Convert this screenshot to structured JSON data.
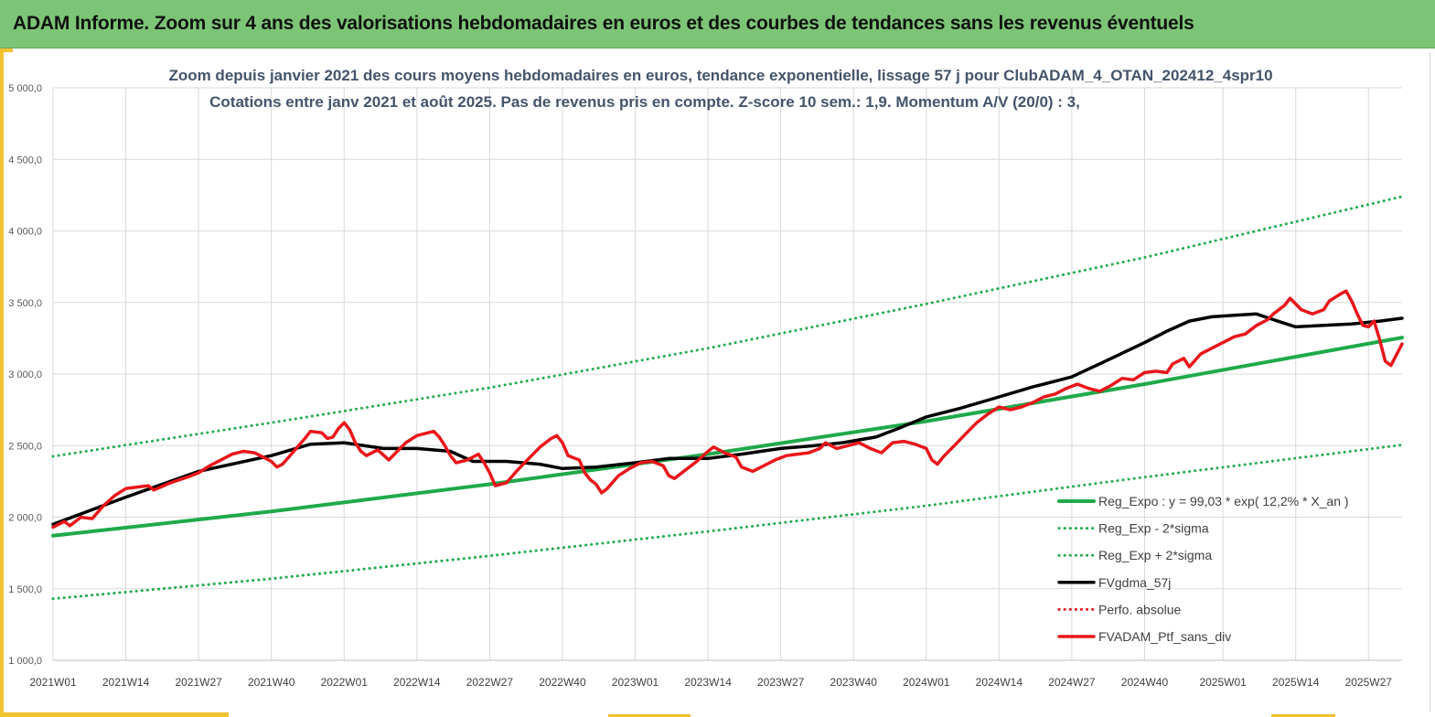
{
  "header": {
    "title": "ADAM Informe. Zoom sur 4 ans des valorisations hebdomadaires en euros et des courbes de tendances sans les revenus éventuels"
  },
  "colors": {
    "banner": "#7cc576",
    "accent": "#f2c12e",
    "green": "#1faa4b",
    "black": "#000000",
    "red": "#e8161b",
    "grid": "#d9d9d9"
  },
  "chart_data": {
    "type": "line",
    "title": "Zoom depuis janvier 2021 des cours moyens hebdomadaires  en euros, tendance exponentielle, lissage 57 j pour ClubADAM_4_OTAN_202412_4spr10",
    "subtitle": "Cotations  entre janv 2021 et août 2025. Pas de revenus pris en compte. Z-score 10 sem.: 1,9. Momentum  A/V (20/0) : 3,",
    "xlabel": "",
    "ylabel": "",
    "ylim": [
      1000,
      5000
    ],
    "yticks": [
      1000,
      1500,
      2000,
      2500,
      3000,
      3500,
      4000,
      4500,
      5000
    ],
    "ytick_labels": [
      "1 000,0",
      "1 500,0",
      "2 000,0",
      "2 500,0",
      "3 000,0",
      "3 500,0",
      "4 000,0",
      "4 500,0",
      "5 000,0"
    ],
    "x_range_weeks": [
      1,
      242
    ],
    "xticks": [
      {
        "label": "2021W01",
        "week": 1
      },
      {
        "label": "2021W14",
        "week": 14
      },
      {
        "label": "2021W27",
        "week": 27
      },
      {
        "label": "2021W40",
        "week": 40
      },
      {
        "label": "2022W01",
        "week": 53
      },
      {
        "label": "2022W14",
        "week": 66
      },
      {
        "label": "2022W27",
        "week": 79
      },
      {
        "label": "2022W40",
        "week": 92
      },
      {
        "label": "2023W01",
        "week": 105
      },
      {
        "label": "2023W14",
        "week": 118
      },
      {
        "label": "2023W27",
        "week": 131
      },
      {
        "label": "2023W40",
        "week": 144
      },
      {
        "label": "2024W01",
        "week": 157
      },
      {
        "label": "2024W14",
        "week": 170
      },
      {
        "label": "2024W27",
        "week": 183
      },
      {
        "label": "2024W40",
        "week": 196
      },
      {
        "label": "2025W01",
        "week": 210
      },
      {
        "label": "2025W14",
        "week": 223
      },
      {
        "label": "2025W27",
        "week": 236
      }
    ],
    "grid": true,
    "legend_position": "bottom-right",
    "series": [
      {
        "name": "Reg_Expo : y = 99,03 * exp( 12,2% *  X_an )",
        "style": "solid",
        "color": "#1faa4b",
        "points": [
          [
            1,
            1870
          ],
          [
            40,
            2040
          ],
          [
            79,
            2230
          ],
          [
            118,
            2440
          ],
          [
            157,
            2670
          ],
          [
            196,
            2930
          ],
          [
            242,
            3255
          ]
        ]
      },
      {
        "name": "Reg_Exp - 2*sigma",
        "style": "dotted",
        "color": "#1faa4b",
        "points": [
          [
            1,
            1430
          ],
          [
            40,
            1570
          ],
          [
            79,
            1730
          ],
          [
            118,
            1900
          ],
          [
            157,
            2080
          ],
          [
            196,
            2280
          ],
          [
            242,
            2505
          ]
        ]
      },
      {
        "name": "Reg_Exp + 2*sigma",
        "style": "dotted",
        "color": "#1faa4b",
        "points": [
          [
            1,
            2425
          ],
          [
            40,
            2660
          ],
          [
            79,
            2905
          ],
          [
            118,
            3180
          ],
          [
            157,
            3490
          ],
          [
            196,
            3815
          ],
          [
            242,
            4240
          ]
        ]
      },
      {
        "name": "FVgdma_57j",
        "style": "solid",
        "color": "#000000",
        "points": [
          [
            1,
            1950
          ],
          [
            14,
            2140
          ],
          [
            27,
            2320
          ],
          [
            40,
            2430
          ],
          [
            47,
            2510
          ],
          [
            53,
            2520
          ],
          [
            60,
            2480
          ],
          [
            66,
            2480
          ],
          [
            72,
            2460
          ],
          [
            76,
            2390
          ],
          [
            82,
            2390
          ],
          [
            88,
            2370
          ],
          [
            92,
            2340
          ],
          [
            98,
            2350
          ],
          [
            105,
            2380
          ],
          [
            111,
            2410
          ],
          [
            118,
            2410
          ],
          [
            124,
            2440
          ],
          [
            131,
            2480
          ],
          [
            137,
            2500
          ],
          [
            142,
            2520
          ],
          [
            148,
            2560
          ],
          [
            152,
            2620
          ],
          [
            157,
            2700
          ],
          [
            163,
            2760
          ],
          [
            170,
            2840
          ],
          [
            176,
            2910
          ],
          [
            183,
            2980
          ],
          [
            189,
            3090
          ],
          [
            196,
            3220
          ],
          [
            200,
            3300
          ],
          [
            204,
            3370
          ],
          [
            208,
            3400
          ],
          [
            212,
            3410
          ],
          [
            216,
            3420
          ],
          [
            219,
            3380
          ],
          [
            223,
            3330
          ],
          [
            228,
            3340
          ],
          [
            233,
            3350
          ],
          [
            238,
            3370
          ],
          [
            242,
            3390
          ]
        ]
      },
      {
        "name": "Perfo. absolue",
        "style": "dotted",
        "color": "#e8161b",
        "points": []
      },
      {
        "name": "FVADAM_Ptf_sans_div",
        "style": "solid",
        "color": "#e8161b",
        "points": [
          [
            1,
            1930
          ],
          [
            3,
            1970
          ],
          [
            4,
            1940
          ],
          [
            6,
            2000
          ],
          [
            8,
            1990
          ],
          [
            10,
            2080
          ],
          [
            12,
            2150
          ],
          [
            14,
            2200
          ],
          [
            16,
            2210
          ],
          [
            18,
            2220
          ],
          [
            19,
            2190
          ],
          [
            22,
            2240
          ],
          [
            25,
            2280
          ],
          [
            27,
            2310
          ],
          [
            29,
            2360
          ],
          [
            31,
            2400
          ],
          [
            33,
            2440
          ],
          [
            35,
            2460
          ],
          [
            37,
            2450
          ],
          [
            38,
            2430
          ],
          [
            40,
            2390
          ],
          [
            41,
            2350
          ],
          [
            42,
            2370
          ],
          [
            44,
            2460
          ],
          [
            46,
            2550
          ],
          [
            47,
            2600
          ],
          [
            49,
            2590
          ],
          [
            50,
            2550
          ],
          [
            51,
            2560
          ],
          [
            52,
            2620
          ],
          [
            53,
            2660
          ],
          [
            54,
            2610
          ],
          [
            55,
            2520
          ],
          [
            56,
            2460
          ],
          [
            57,
            2430
          ],
          [
            59,
            2470
          ],
          [
            61,
            2400
          ],
          [
            62,
            2440
          ],
          [
            64,
            2520
          ],
          [
            66,
            2570
          ],
          [
            68,
            2590
          ],
          [
            69,
            2600
          ],
          [
            70,
            2560
          ],
          [
            71,
            2500
          ],
          [
            72,
            2430
          ],
          [
            73,
            2380
          ],
          [
            75,
            2400
          ],
          [
            76,
            2420
          ],
          [
            77,
            2440
          ],
          [
            78,
            2380
          ],
          [
            79,
            2310
          ],
          [
            80,
            2220
          ],
          [
            82,
            2240
          ],
          [
            84,
            2330
          ],
          [
            86,
            2410
          ],
          [
            88,
            2490
          ],
          [
            90,
            2550
          ],
          [
            91,
            2570
          ],
          [
            92,
            2520
          ],
          [
            93,
            2430
          ],
          [
            95,
            2400
          ],
          [
            96,
            2310
          ],
          [
            97,
            2260
          ],
          [
            98,
            2230
          ],
          [
            99,
            2170
          ],
          [
            100,
            2200
          ],
          [
            102,
            2290
          ],
          [
            104,
            2340
          ],
          [
            106,
            2380
          ],
          [
            108,
            2390
          ],
          [
            110,
            2360
          ],
          [
            111,
            2290
          ],
          [
            112,
            2270
          ],
          [
            114,
            2330
          ],
          [
            116,
            2390
          ],
          [
            118,
            2460
          ],
          [
            119,
            2490
          ],
          [
            121,
            2450
          ],
          [
            123,
            2420
          ],
          [
            124,
            2350
          ],
          [
            126,
            2320
          ],
          [
            128,
            2360
          ],
          [
            130,
            2400
          ],
          [
            132,
            2430
          ],
          [
            134,
            2440
          ],
          [
            136,
            2450
          ],
          [
            138,
            2480
          ],
          [
            139,
            2520
          ],
          [
            141,
            2480
          ],
          [
            143,
            2500
          ],
          [
            145,
            2520
          ],
          [
            147,
            2480
          ],
          [
            149,
            2450
          ],
          [
            151,
            2520
          ],
          [
            153,
            2530
          ],
          [
            155,
            2510
          ],
          [
            157,
            2480
          ],
          [
            158,
            2400
          ],
          [
            159,
            2370
          ],
          [
            160,
            2420
          ],
          [
            162,
            2500
          ],
          [
            164,
            2580
          ],
          [
            166,
            2660
          ],
          [
            168,
            2720
          ],
          [
            170,
            2770
          ],
          [
            172,
            2750
          ],
          [
            174,
            2770
          ],
          [
            176,
            2800
          ],
          [
            178,
            2840
          ],
          [
            180,
            2860
          ],
          [
            182,
            2900
          ],
          [
            184,
            2930
          ],
          [
            186,
            2900
          ],
          [
            188,
            2880
          ],
          [
            190,
            2920
          ],
          [
            192,
            2970
          ],
          [
            194,
            2960
          ],
          [
            196,
            3010
          ],
          [
            198,
            3020
          ],
          [
            200,
            3010
          ],
          [
            201,
            3070
          ],
          [
            203,
            3110
          ],
          [
            204,
            3050
          ],
          [
            206,
            3140
          ],
          [
            208,
            3180
          ],
          [
            210,
            3220
          ],
          [
            212,
            3260
          ],
          [
            214,
            3280
          ],
          [
            216,
            3340
          ],
          [
            218,
            3380
          ],
          [
            219,
            3420
          ],
          [
            221,
            3480
          ],
          [
            222,
            3530
          ],
          [
            224,
            3450
          ],
          [
            226,
            3420
          ],
          [
            228,
            3450
          ],
          [
            229,
            3510
          ],
          [
            231,
            3560
          ],
          [
            232,
            3580
          ],
          [
            233,
            3510
          ],
          [
            234,
            3420
          ],
          [
            235,
            3340
          ],
          [
            236,
            3330
          ],
          [
            237,
            3370
          ],
          [
            238,
            3240
          ],
          [
            239,
            3090
          ],
          [
            240,
            3060
          ],
          [
            242,
            3210
          ]
        ]
      }
    ]
  }
}
